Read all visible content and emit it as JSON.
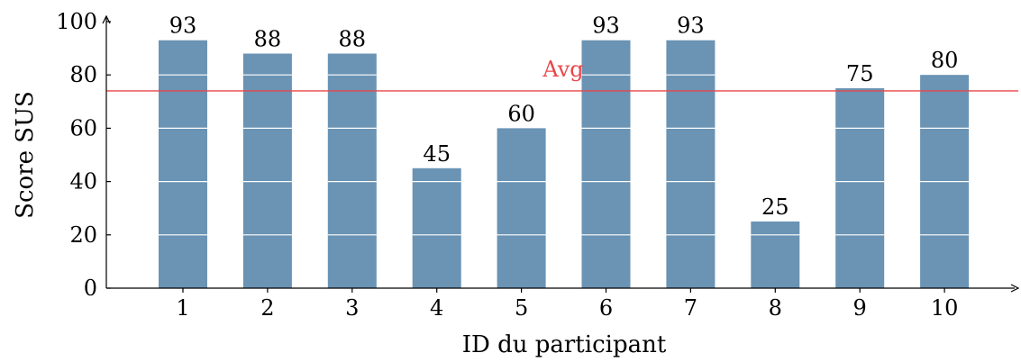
{
  "chart_data": {
    "type": "bar",
    "title": "",
    "xlabel": "ID du participant",
    "ylabel": "Score SUS",
    "categories": [
      "1",
      "2",
      "3",
      "4",
      "5",
      "6",
      "7",
      "8",
      "9",
      "10"
    ],
    "values": [
      93,
      88,
      88,
      45,
      60,
      93,
      93,
      25,
      75,
      80
    ],
    "data_labels": [
      "93",
      "88",
      "88",
      "45",
      "60",
      "93",
      "93",
      "25",
      "75",
      "80"
    ],
    "ylim": [
      0,
      100
    ],
    "yticks": [
      0,
      20,
      40,
      60,
      80,
      100
    ],
    "ytick_labels": [
      "0",
      "20",
      "40",
      "60",
      "80",
      "100"
    ],
    "grid": "white horizontal lines inside bars",
    "reference_line": {
      "label": "Avg",
      "value": 74
    },
    "colors": {
      "bar": "#6a93b4",
      "avg_line": "#e8474b",
      "axis": "#000000",
      "grid": "#ffffff"
    }
  }
}
